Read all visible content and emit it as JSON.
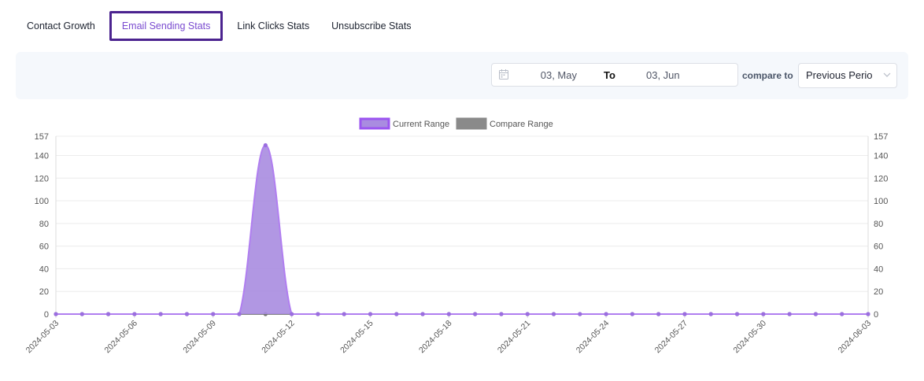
{
  "tabs": [
    {
      "label": "Contact Growth",
      "active": false
    },
    {
      "label": "Email Sending Stats",
      "active": true
    },
    {
      "label": "Link Clicks Stats",
      "active": false
    },
    {
      "label": "Unsubscribe Stats",
      "active": false
    }
  ],
  "filters": {
    "start_date": "03, May",
    "separator": "To",
    "end_date": "03, Jun",
    "compare_label": "compare to",
    "compare_value": "Previous Perio"
  },
  "icons": {
    "calendar": "calendar-icon",
    "dropdown": "chevron-down-icon"
  },
  "colors": {
    "accent": "#4b238f",
    "current_fill": "#a98ce0",
    "current_line": "#b07ef0",
    "compare_fill": "#8a8a8a"
  },
  "chart_data": {
    "type": "area",
    "x": [
      "2024-05-03",
      "2024-05-04",
      "2024-05-05",
      "2024-05-06",
      "2024-05-07",
      "2024-05-08",
      "2024-05-09",
      "2024-05-10",
      "2024-05-11",
      "2024-05-12",
      "2024-05-13",
      "2024-05-14",
      "2024-05-15",
      "2024-05-16",
      "2024-05-17",
      "2024-05-18",
      "2024-05-19",
      "2024-05-20",
      "2024-05-21",
      "2024-05-22",
      "2024-05-23",
      "2024-05-24",
      "2024-05-25",
      "2024-05-26",
      "2024-05-27",
      "2024-05-28",
      "2024-05-29",
      "2024-05-30",
      "2024-05-31",
      "2024-06-01",
      "2024-06-02",
      "2024-06-03"
    ],
    "x_tick_labels": [
      "2024-05-03",
      "2024-05-06",
      "2024-05-09",
      "2024-05-12",
      "2024-05-15",
      "2024-05-18",
      "2024-05-21",
      "2024-05-24",
      "2024-05-27",
      "2024-05-30",
      "2024-06-03"
    ],
    "series": [
      {
        "name": "Current Range",
        "values": [
          0,
          0,
          0,
          0,
          0,
          0,
          0,
          0,
          149,
          0,
          0,
          0,
          0,
          0,
          0,
          0,
          0,
          0,
          0,
          0,
          0,
          0,
          0,
          0,
          0,
          0,
          0,
          0,
          0,
          0,
          0,
          0
        ]
      },
      {
        "name": "Compare Range",
        "values": [
          0,
          0,
          0,
          0,
          0,
          0,
          0,
          0,
          0,
          0,
          0,
          0,
          0,
          0,
          0,
          0,
          0,
          0,
          0,
          0,
          0,
          0,
          0,
          0,
          0,
          0,
          0,
          0,
          0,
          0,
          0,
          0
        ]
      }
    ],
    "y_ticks": [
      0,
      20,
      40,
      60,
      80,
      100,
      120,
      140,
      157
    ],
    "ylim": [
      0,
      157
    ],
    "legend": "top-center",
    "grid": true
  }
}
